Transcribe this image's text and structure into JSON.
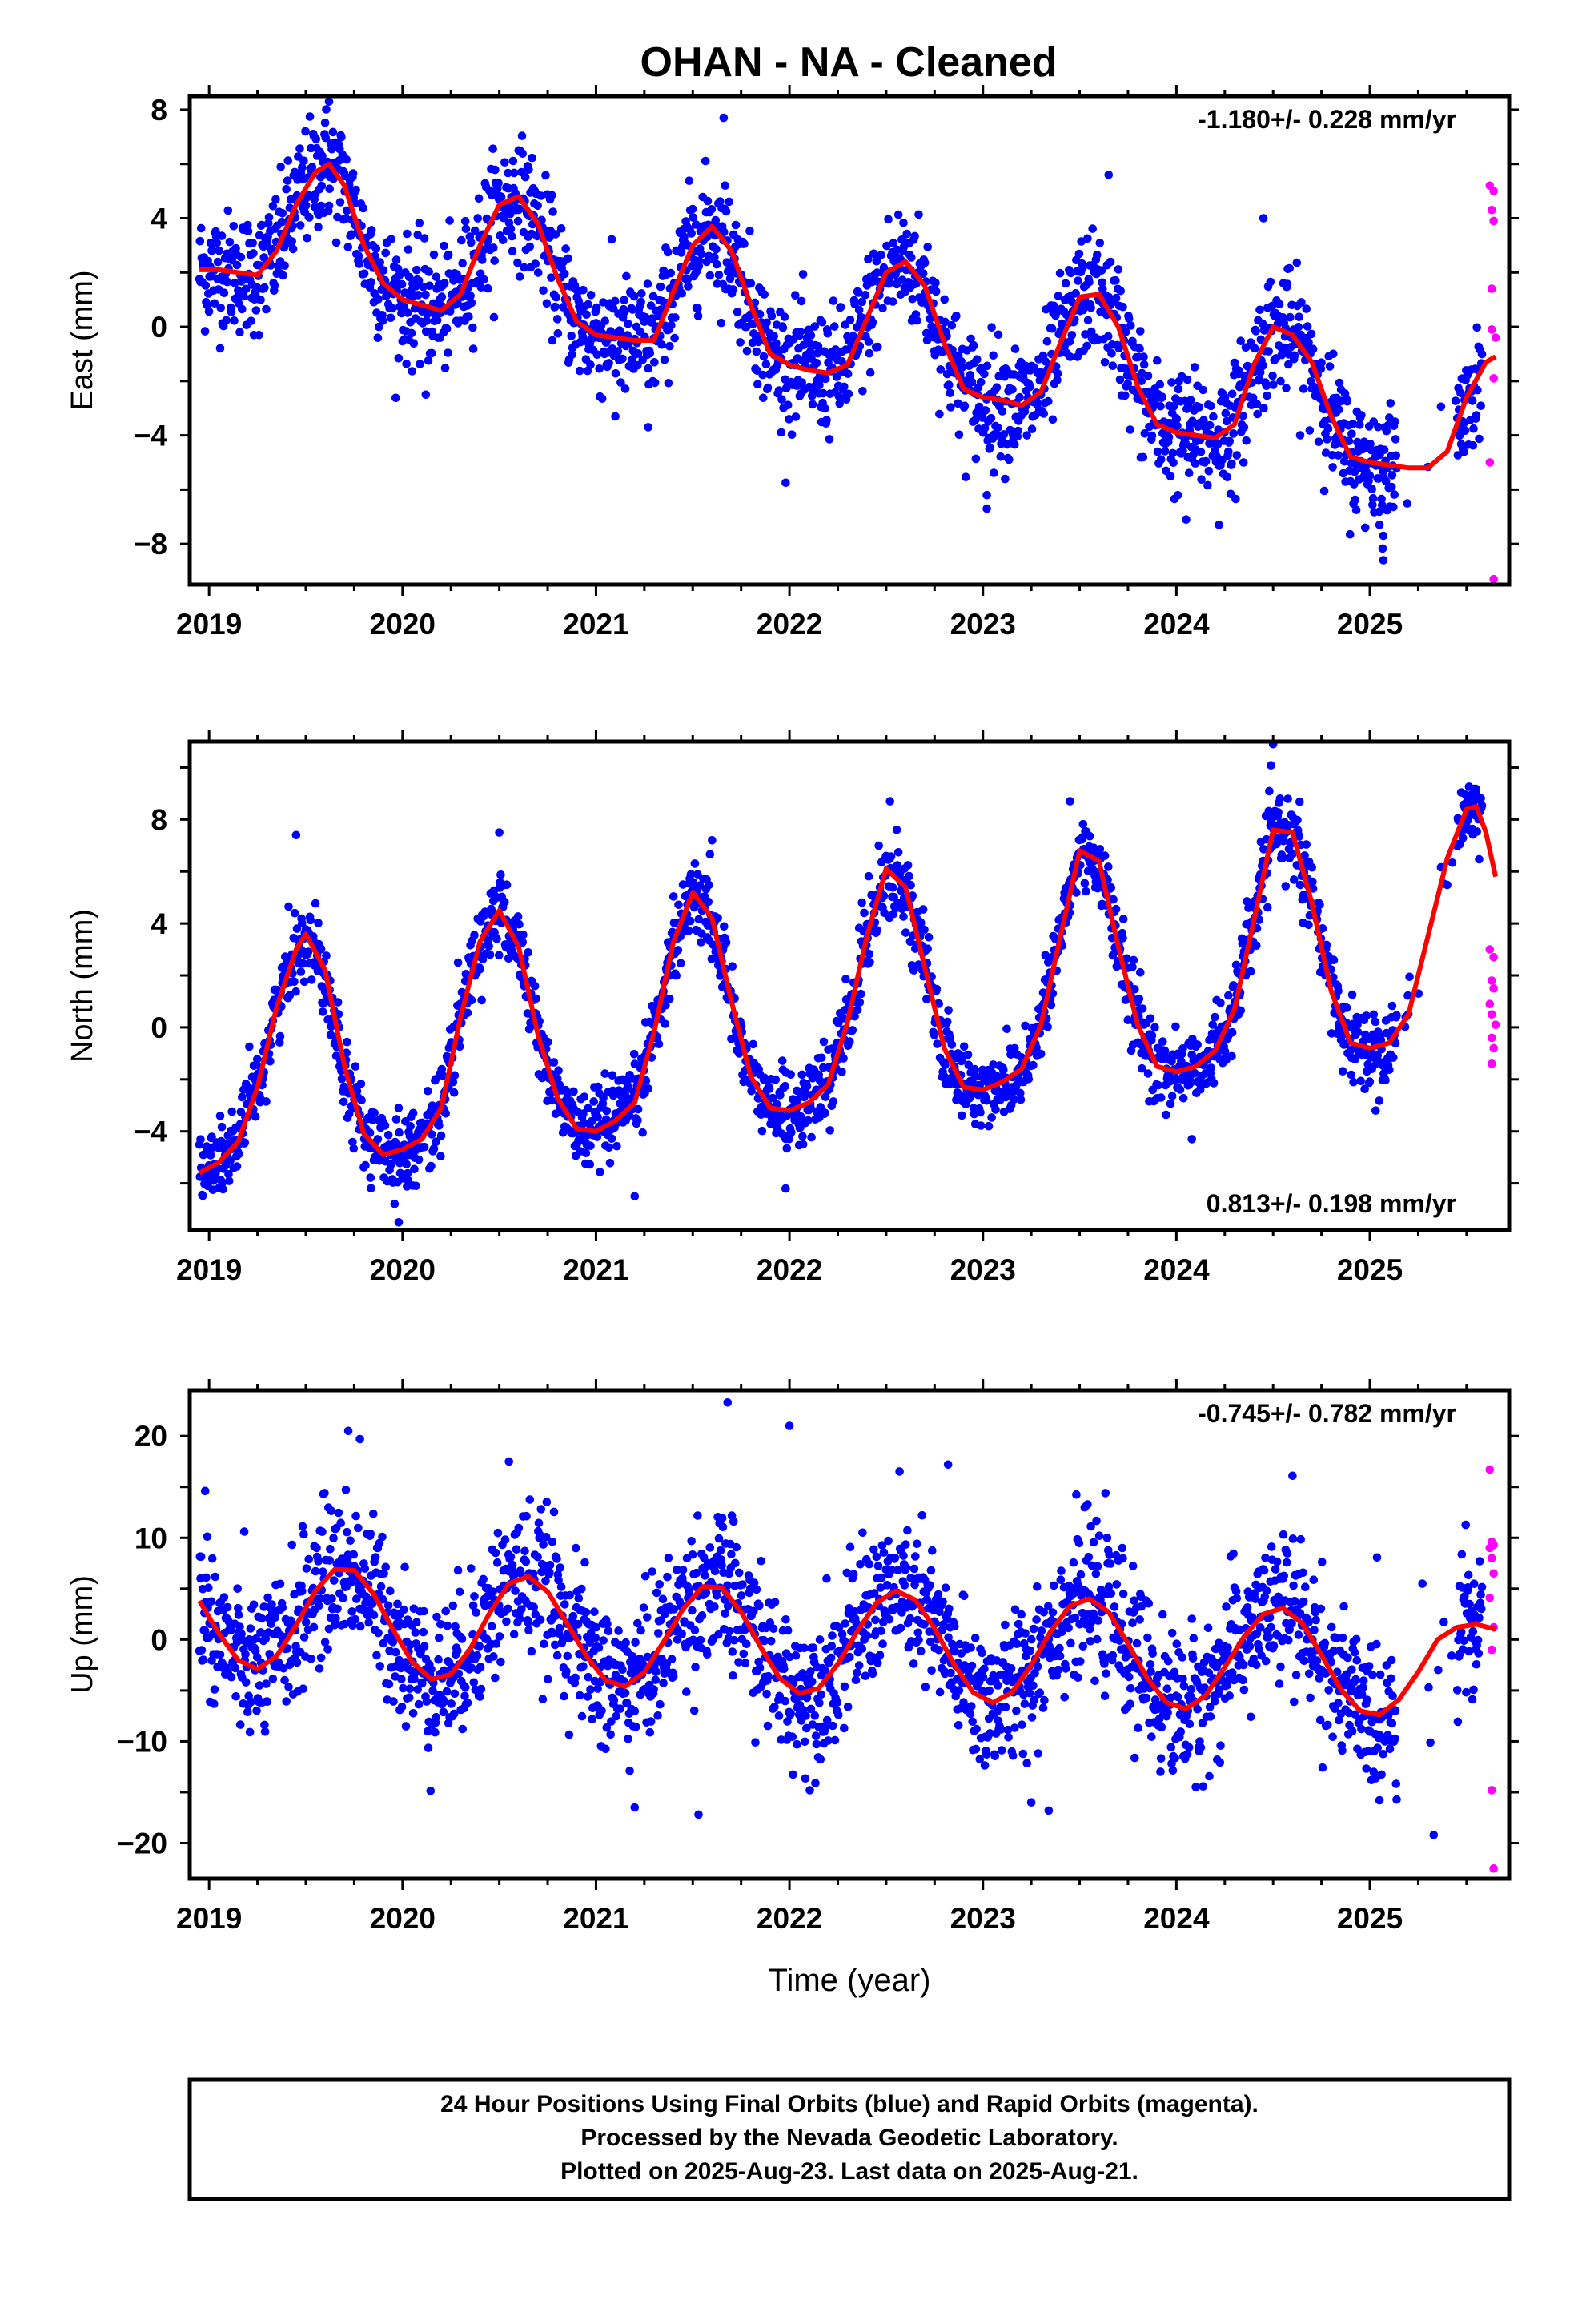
{
  "title": "OHAN  - NA - Cleaned",
  "footer": {
    "line1": "24 Hour Positions Using Final Orbits (blue) and Rapid Orbits (magenta).",
    "line2": "Processed by the Nevada Geodetic Laboratory.",
    "line3": "Plotted on 2025-Aug-23. Last data on 2025-Aug-21."
  },
  "colors": {
    "final_orbits": "#0000ff",
    "rapid_orbits": "#ff00ff",
    "model_fit": "#ff0000"
  },
  "chart_data": [
    {
      "type": "scatter",
      "component": "east",
      "ylabel": "East (mm)",
      "xlabel": "",
      "rate_label": "-1.180+/- 0.228 mm/yr",
      "rate_position": "top-right",
      "xlim": [
        2018.9,
        2025.72
      ],
      "ylim": [
        -9.5,
        8.5
      ],
      "xticks": [
        "2019",
        "2020",
        "2021",
        "2022",
        "2023",
        "2024",
        "2025"
      ],
      "yticks": [
        "8",
        "4",
        "0",
        "−4",
        "−8"
      ],
      "ytick_values": [
        8,
        4,
        0,
        -4,
        -8
      ],
      "grid": false,
      "model": {
        "x": [
          2018.95,
          2019.05,
          2019.15,
          2019.25,
          2019.35,
          2019.45,
          2019.55,
          2019.62,
          2019.7,
          2019.8,
          2019.9,
          2020.0,
          2020.1,
          2020.2,
          2020.3,
          2020.4,
          2020.5,
          2020.6,
          2020.7,
          2020.8,
          2020.9,
          2021.0,
          2021.1,
          2021.2,
          2021.3,
          2021.4,
          2021.5,
          2021.6,
          2021.7,
          2021.8,
          2021.9,
          2022.0,
          2022.1,
          2022.2,
          2022.3,
          2022.4,
          2022.5,
          2022.6,
          2022.7,
          2022.8,
          2022.9,
          2023.0,
          2023.1,
          2023.2,
          2023.3,
          2023.4,
          2023.5,
          2023.6,
          2023.7,
          2023.8,
          2023.9,
          2024.0,
          2024.1,
          2024.2,
          2024.3,
          2024.4,
          2024.5,
          2024.6,
          2024.7,
          2024.8,
          2024.9,
          2025.0,
          2025.1,
          2025.2,
          2025.3,
          2025.4,
          2025.5,
          2025.6,
          2025.65
        ],
        "y": [
          2.1,
          2.1,
          2.0,
          1.9,
          2.8,
          4.5,
          5.7,
          6.0,
          5.2,
          3.0,
          1.6,
          1.0,
          0.8,
          0.6,
          1.2,
          3.0,
          4.5,
          4.8,
          3.8,
          1.8,
          0.2,
          -0.3,
          -0.4,
          -0.5,
          -0.5,
          1.3,
          3.0,
          3.7,
          2.8,
          0.8,
          -1.0,
          -1.4,
          -1.6,
          -1.7,
          -1.4,
          0.3,
          2.0,
          2.4,
          1.5,
          -0.6,
          -2.3,
          -2.6,
          -2.7,
          -2.9,
          -2.4,
          -0.6,
          1.1,
          1.2,
          0.0,
          -2.2,
          -3.6,
          -3.9,
          -4.0,
          -4.1,
          -3.6,
          -1.4,
          0.0,
          -0.3,
          -1.3,
          -3.3,
          -4.8,
          -5.0,
          -5.1,
          -5.2,
          -5.2,
          -4.6,
          -2.6,
          -1.3,
          -1.1
        ]
      },
      "season": {
        "amplitude": 2.0,
        "phase_year_fraction": 0.6,
        "offset": 2.6,
        "noise": 1.1
      },
      "outlier_points": [
        [
          2025.07,
          -8.6
        ],
        [
          2025.07,
          -7.7
        ],
        [
          2025.05,
          -7.3
        ],
        [
          2023.02,
          -6.7
        ],
        [
          2023.02,
          -6.2
        ],
        [
          2024.05,
          -7.1
        ],
        [
          2024.22,
          -7.3
        ],
        [
          2021.1,
          -3.3
        ],
        [
          2021.27,
          -3.7
        ],
        [
          2020.12,
          -2.5
        ],
        [
          2019.62,
          8.3
        ],
        [
          2021.66,
          7.7
        ],
        [
          2020.6,
          6.5
        ],
        [
          2023.65,
          5.6
        ],
        [
          2024.45,
          4.0
        ]
      ],
      "rapid_points": [
        [
          2025.62,
          5.2
        ],
        [
          2025.64,
          5.0
        ],
        [
          2025.63,
          4.3
        ],
        [
          2025.64,
          3.9
        ],
        [
          2025.63,
          1.4
        ],
        [
          2025.65,
          -0.4
        ],
        [
          2025.63,
          -0.1
        ],
        [
          2025.64,
          -1.9
        ],
        [
          2025.62,
          -5.0
        ],
        [
          2025.64,
          -9.3
        ]
      ]
    },
    {
      "type": "scatter",
      "component": "north",
      "ylabel": "North (mm)",
      "xlabel": "",
      "rate_label": "0.813+/- 0.198 mm/yr",
      "rate_position": "bottom-right",
      "xlim": [
        2018.9,
        2025.72
      ],
      "ylim": [
        -7.8,
        11.0
      ],
      "xticks": [
        "2019",
        "2020",
        "2021",
        "2022",
        "2023",
        "2024",
        "2025"
      ],
      "yticks": [
        "8",
        "4",
        "0",
        "−4"
      ],
      "ytick_values": [
        8,
        4,
        0,
        -4
      ],
      "grid": false,
      "model": {
        "x": [
          2018.95,
          2019.05,
          2019.15,
          2019.25,
          2019.35,
          2019.45,
          2019.5,
          2019.6,
          2019.7,
          2019.8,
          2019.9,
          2020.0,
          2020.1,
          2020.2,
          2020.3,
          2020.4,
          2020.5,
          2020.6,
          2020.7,
          2020.8,
          2020.9,
          2021.0,
          2021.1,
          2021.2,
          2021.3,
          2021.4,
          2021.5,
          2021.6,
          2021.7,
          2021.8,
          2021.9,
          2022.0,
          2022.1,
          2022.2,
          2022.3,
          2022.4,
          2022.5,
          2022.6,
          2022.7,
          2022.8,
          2022.9,
          2023.0,
          2023.1,
          2023.2,
          2023.3,
          2023.4,
          2023.5,
          2023.6,
          2023.7,
          2023.8,
          2023.9,
          2024.0,
          2024.1,
          2024.2,
          2024.3,
          2024.4,
          2024.5,
          2024.6,
          2024.7,
          2024.8,
          2024.9,
          2025.0,
          2025.1,
          2025.2,
          2025.3,
          2025.4,
          2025.5,
          2025.55,
          2025.6,
          2025.65
        ],
        "y": [
          -5.6,
          -5.2,
          -4.4,
          -2.3,
          0.8,
          3.0,
          3.6,
          2.2,
          -1.5,
          -4.1,
          -4.9,
          -4.7,
          -4.3,
          -3.1,
          0.4,
          3.3,
          4.5,
          3.1,
          -0.3,
          -2.7,
          -3.9,
          -4.0,
          -3.6,
          -2.9,
          -0.2,
          3.3,
          5.2,
          4.2,
          1.0,
          -1.9,
          -3.1,
          -3.2,
          -2.9,
          -2.2,
          0.2,
          3.5,
          6.1,
          5.4,
          2.3,
          -0.8,
          -2.3,
          -2.4,
          -2.1,
          -1.6,
          0.1,
          3.5,
          6.8,
          6.4,
          3.1,
          0.1,
          -1.5,
          -1.7,
          -1.5,
          -0.9,
          0.7,
          4.1,
          7.6,
          7.5,
          4.8,
          1.4,
          -0.6,
          -0.8,
          -0.6,
          0.5,
          3.5,
          6.5,
          8.4,
          8.5,
          7.5,
          5.8
        ]
      },
      "season": {
        "amplitude": 4.6,
        "phase_year_fraction": 0.5,
        "offset": -0.3,
        "noise": 0.75
      },
      "outlier_points": [
        [
          2019.45,
          7.4
        ],
        [
          2020.5,
          7.5
        ],
        [
          2021.6,
          7.2
        ],
        [
          2022.52,
          8.7
        ],
        [
          2023.45,
          8.7
        ],
        [
          2024.5,
          10.9
        ],
        [
          2019.98,
          -7.5
        ],
        [
          2021.2,
          -6.5
        ],
        [
          2021.98,
          -6.2
        ],
        [
          2024.08,
          -4.3
        ],
        [
          2023.03,
          -3.8
        ],
        [
          2025.03,
          -3.2
        ]
      ],
      "rapid_points": [
        [
          2025.62,
          3.0
        ],
        [
          2025.64,
          2.7
        ],
        [
          2025.63,
          1.8
        ],
        [
          2025.64,
          1.5
        ],
        [
          2025.62,
          0.9
        ],
        [
          2025.63,
          0.5
        ],
        [
          2025.65,
          0.1
        ],
        [
          2025.63,
          -0.4
        ],
        [
          2025.64,
          -0.8
        ],
        [
          2025.63,
          -1.4
        ]
      ]
    },
    {
      "type": "scatter",
      "component": "up",
      "ylabel": "Up (mm)",
      "xlabel": "Time (year)",
      "rate_label": "-0.745+/- 0.782 mm/yr",
      "rate_position": "top-right",
      "xlim": [
        2018.9,
        2025.72
      ],
      "ylim": [
        -23.5,
        24.5
      ],
      "xticks": [
        "2019",
        "2020",
        "2021",
        "2022",
        "2023",
        "2024",
        "2025"
      ],
      "yticks": [
        "20",
        "10",
        "0",
        "−10",
        "−20"
      ],
      "ytick_values": [
        20,
        10,
        0,
        -10,
        -20
      ],
      "grid": false,
      "model": {
        "x": [
          2018.95,
          2019.05,
          2019.15,
          2019.25,
          2019.35,
          2019.45,
          2019.55,
          2019.65,
          2019.75,
          2019.85,
          2019.95,
          2020.05,
          2020.15,
          2020.25,
          2020.35,
          2020.45,
          2020.55,
          2020.65,
          2020.75,
          2020.85,
          2020.95,
          2021.05,
          2021.15,
          2021.25,
          2021.35,
          2021.45,
          2021.55,
          2021.65,
          2021.75,
          2021.85,
          2021.95,
          2022.05,
          2022.15,
          2022.25,
          2022.35,
          2022.45,
          2022.55,
          2022.65,
          2022.75,
          2022.85,
          2022.95,
          2023.05,
          2023.15,
          2023.25,
          2023.35,
          2023.45,
          2023.55,
          2023.65,
          2023.75,
          2023.85,
          2023.95,
          2024.05,
          2024.15,
          2024.25,
          2024.35,
          2024.45,
          2024.55,
          2024.65,
          2024.75,
          2024.85,
          2024.95,
          2025.05,
          2025.15,
          2025.25,
          2025.35,
          2025.45,
          2025.55,
          2025.65
        ],
        "y": [
          3.8,
          0.6,
          -2.0,
          -2.9,
          -1.6,
          1.4,
          4.8,
          6.9,
          6.8,
          4.5,
          1.0,
          -2.2,
          -3.9,
          -3.4,
          -0.9,
          2.6,
          5.5,
          6.2,
          4.7,
          1.6,
          -1.6,
          -4.0,
          -4.6,
          -3.2,
          -0.2,
          3.0,
          5.2,
          5.1,
          2.7,
          -0.7,
          -3.8,
          -5.3,
          -4.8,
          -2.4,
          0.8,
          3.6,
          4.8,
          3.9,
          1.1,
          -2.4,
          -5.2,
          -6.2,
          -5.2,
          -2.5,
          0.8,
          3.3,
          4.0,
          2.7,
          -0.4,
          -3.8,
          -6.2,
          -6.8,
          -5.5,
          -2.7,
          0.3,
          2.5,
          3.1,
          1.6,
          -1.5,
          -4.9,
          -7.0,
          -7.4,
          -5.9,
          -3.2,
          0.0,
          1.2,
          1.5,
          1.0
        ]
      },
      "season": {
        "amplitude": 5.0,
        "phase_year_fraction": 0.75,
        "offset": 0.0,
        "noise": 3.6
      },
      "outlier_points": [
        [
          2019.72,
          20.5
        ],
        [
          2019.78,
          19.7
        ],
        [
          2020.55,
          17.5
        ],
        [
          2021.68,
          23.3
        ],
        [
          2022.0,
          21.0
        ],
        [
          2022.82,
          17.2
        ],
        [
          2024.6,
          16.1
        ],
        [
          2021.53,
          -17.2
        ],
        [
          2021.2,
          -16.5
        ],
        [
          2023.25,
          -16.0
        ],
        [
          2023.34,
          -16.8
        ],
        [
          2025.33,
          -19.2
        ],
        [
          2025.05,
          -15.8
        ],
        [
          2018.98,
          14.6
        ]
      ],
      "rapid_points": [
        [
          2025.62,
          16.7
        ],
        [
          2025.63,
          9.6
        ],
        [
          2025.64,
          9.3
        ],
        [
          2025.62,
          9.0
        ],
        [
          2025.63,
          8.0
        ],
        [
          2025.64,
          6.5
        ],
        [
          2025.62,
          4.1
        ],
        [
          2025.64,
          1.2
        ],
        [
          2025.63,
          -1.0
        ],
        [
          2025.63,
          -14.8
        ],
        [
          2025.64,
          -22.5
        ]
      ]
    }
  ]
}
